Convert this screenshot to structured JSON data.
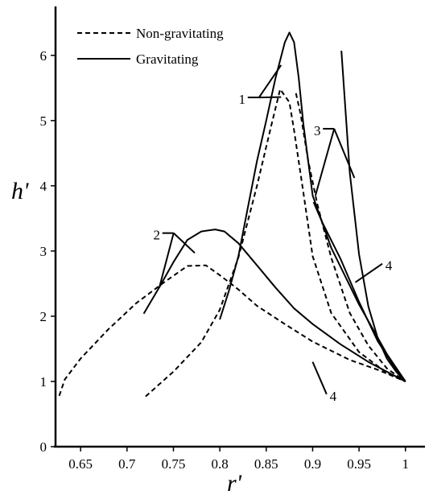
{
  "chart_data": {
    "type": "line",
    "xlabel": "r'",
    "ylabel": "h'",
    "xlim": [
      0.623,
      1.021
    ],
    "ylim": [
      0,
      6.75
    ],
    "grid": false,
    "legend_placement": "top-left",
    "xticks": [
      "0.65",
      "0.7",
      "0.75",
      "0.8",
      "0.85",
      "0.9",
      "0.95",
      "1"
    ],
    "xtick_values": [
      0.65,
      0.7,
      0.75,
      0.8,
      0.85,
      0.9,
      0.95,
      1.0
    ],
    "yticks": [
      "0",
      "1",
      "2",
      "3",
      "4",
      "5",
      "6"
    ],
    "ytick_values": [
      0,
      1,
      2,
      3,
      4,
      5,
      6
    ],
    "legend": [
      {
        "label": "Non-gravitating",
        "style": "dashed"
      },
      {
        "label": "Gravitating",
        "style": "solid"
      }
    ],
    "series": [
      {
        "style": "solid",
        "x": [
          0.718,
          0.735,
          0.75,
          0.765,
          0.78,
          0.795,
          0.805,
          0.82,
          0.84,
          0.86,
          0.88,
          0.9,
          0.93,
          0.96,
          1.0
        ],
        "y": [
          2.04,
          2.45,
          2.83,
          3.17,
          3.3,
          3.33,
          3.3,
          3.12,
          2.78,
          2.44,
          2.12,
          1.88,
          1.57,
          1.3,
          1.0
        ]
      },
      {
        "style": "dashed",
        "x": [
          0.627,
          0.633,
          0.65,
          0.68,
          0.71,
          0.74,
          0.765,
          0.785,
          0.8,
          0.82,
          0.84,
          0.87,
          0.9,
          0.94,
          0.97,
          1.0
        ],
        "y": [
          0.78,
          1.03,
          1.35,
          1.8,
          2.2,
          2.52,
          2.77,
          2.78,
          2.63,
          2.41,
          2.16,
          1.88,
          1.61,
          1.33,
          1.18,
          1.0
        ]
      },
      {
        "style": "solid",
        "x": [
          0.8,
          0.81,
          0.82,
          0.83,
          0.84,
          0.85,
          0.86,
          0.87,
          0.875,
          0.88,
          0.885,
          0.89,
          0.9,
          0.92,
          0.95,
          0.98,
          1.0
        ],
        "y": [
          1.95,
          2.4,
          2.92,
          3.65,
          4.38,
          5.0,
          5.65,
          6.2,
          6.35,
          6.2,
          5.65,
          4.95,
          3.85,
          3.05,
          2.18,
          1.42,
          1.0
        ]
      },
      {
        "style": "dashed",
        "x": [
          0.72,
          0.75,
          0.78,
          0.8,
          0.82,
          0.84,
          0.855,
          0.865,
          0.875,
          0.88,
          0.89,
          0.9,
          0.92,
          0.95,
          0.98,
          1.0
        ],
        "y": [
          0.77,
          1.15,
          1.6,
          2.1,
          2.9,
          4.0,
          4.9,
          5.48,
          5.28,
          4.85,
          3.9,
          2.92,
          2.05,
          1.45,
          1.13,
          1.0
        ]
      },
      {
        "style": "dashed",
        "x": [
          0.882,
          0.887,
          0.895,
          0.905,
          0.92,
          0.94,
          0.96,
          0.98,
          1.0
        ],
        "y": [
          5.42,
          5.1,
          4.4,
          3.72,
          2.9,
          2.05,
          1.55,
          1.2,
          1.0
        ]
      },
      {
        "style": "solid",
        "x": [
          0.931,
          0.94,
          0.95,
          0.96,
          0.97,
          0.98,
          0.99,
          1.0
        ],
        "y": [
          6.07,
          4.2,
          2.95,
          2.15,
          1.67,
          1.35,
          1.15,
          1.0
        ]
      },
      {
        "style": "solid",
        "x": [
          0.901,
          0.91,
          0.93,
          0.95,
          0.97,
          0.99,
          1.0
        ],
        "y": [
          3.75,
          3.45,
          2.88,
          2.22,
          1.62,
          1.18,
          1.0
        ]
      }
    ],
    "annotations": [
      {
        "text": "1",
        "x": 0.824,
        "y": 5.33,
        "points_to": [
          [
            0.866,
            5.85
          ],
          [
            0.866,
            5.36
          ]
        ]
      },
      {
        "text": "2",
        "x": 0.732,
        "y": 3.25,
        "points_to": [
          [
            0.773,
            2.97
          ],
          [
            0.735,
            2.45
          ]
        ]
      },
      {
        "text": "3",
        "x": 0.905,
        "y": 4.85,
        "points_to": [
          [
            0.945,
            4.12
          ],
          [
            0.903,
            3.85
          ]
        ]
      },
      {
        "text": "4",
        "x": 0.982,
        "y": 2.78,
        "points_to": [
          [
            0.946,
            2.52
          ]
        ]
      },
      {
        "text": "4",
        "x": 0.922,
        "y": 0.78,
        "points_to": [
          [
            0.9,
            1.3
          ]
        ]
      }
    ]
  }
}
